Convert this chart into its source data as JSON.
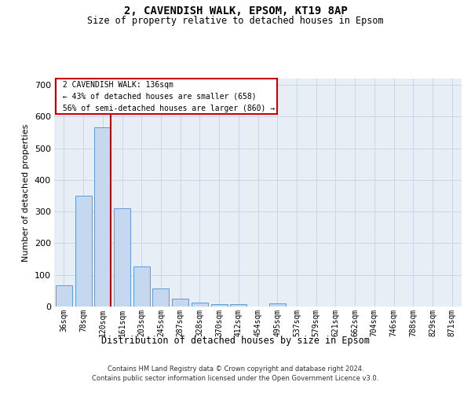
{
  "title": "2, CAVENDISH WALK, EPSOM, KT19 8AP",
  "subtitle": "Size of property relative to detached houses in Epsom",
  "xlabel": "Distribution of detached houses by size in Epsom",
  "ylabel": "Number of detached properties",
  "footer_line1": "Contains HM Land Registry data © Crown copyright and database right 2024.",
  "footer_line2": "Contains public sector information licensed under the Open Government Licence v3.0.",
  "bin_labels": [
    "36sqm",
    "78sqm",
    "120sqm",
    "161sqm",
    "203sqm",
    "245sqm",
    "287sqm",
    "328sqm",
    "370sqm",
    "412sqm",
    "454sqm",
    "495sqm",
    "537sqm",
    "579sqm",
    "621sqm",
    "662sqm",
    "704sqm",
    "746sqm",
    "788sqm",
    "829sqm",
    "871sqm"
  ],
  "bar_values": [
    68,
    350,
    565,
    310,
    127,
    57,
    25,
    13,
    7,
    7,
    0,
    10,
    0,
    0,
    0,
    0,
    0,
    0,
    0,
    0,
    0
  ],
  "bar_color": "#c5d8f0",
  "bar_edge_color": "#5b9bd5",
  "red_line_x": 2.43,
  "property_size": 136,
  "pct_smaller": 43,
  "n_smaller": 658,
  "pct_larger_semi": 56,
  "n_larger_semi": 860,
  "annotation_box_facecolor": "#ffffff",
  "annotation_box_edgecolor": "#cc0000",
  "red_line_color": "#cc0000",
  "ylim": [
    0,
    720
  ],
  "yticks": [
    0,
    100,
    200,
    300,
    400,
    500,
    600,
    700
  ],
  "grid_color": "#ccd5e3",
  "background_color": "#e8eef6",
  "title_fontsize": 10,
  "subtitle_fontsize": 8.5,
  "ylabel_fontsize": 8,
  "xlabel_fontsize": 8.5,
  "tick_fontsize": 7,
  "footer_fontsize": 6,
  "ann_fontsize": 7
}
